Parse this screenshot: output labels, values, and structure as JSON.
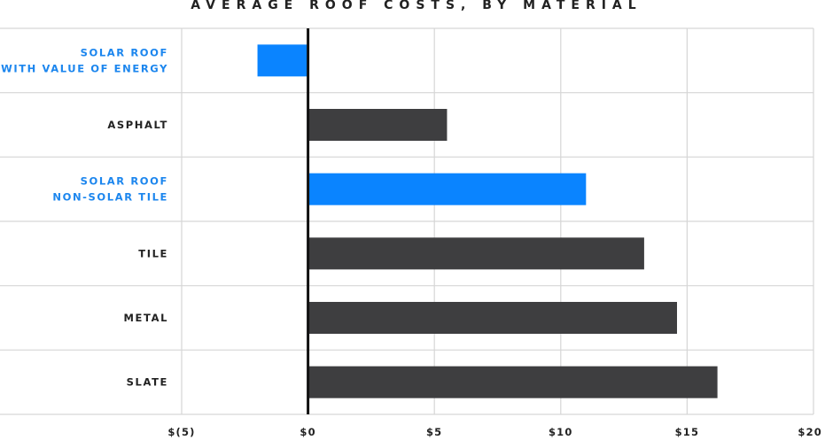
{
  "chart_data": {
    "type": "bar",
    "orientation": "horizontal",
    "title": "AVERAGE ROOF COSTS, BY MATERIAL",
    "xlabel": "",
    "ylabel": "",
    "xlim": [
      -5,
      20
    ],
    "grid": true,
    "legend": "none",
    "x_ticks": [
      {
        "value": -5,
        "label": "$(5)"
      },
      {
        "value": 0,
        "label": "$0"
      },
      {
        "value": 5,
        "label": "$5"
      },
      {
        "value": 10,
        "label": "$10"
      },
      {
        "value": 15,
        "label": "$15"
      },
      {
        "value": 20,
        "label": "$20"
      }
    ],
    "bars": [
      {
        "lines": [
          "SOLAR ROOF",
          "WITH VALUE OF ENERGY"
        ],
        "value": -2.0,
        "highlight": true
      },
      {
        "lines": [
          "ASPHALT"
        ],
        "value": 5.5,
        "highlight": false
      },
      {
        "lines": [
          "SOLAR ROOF",
          "NON-SOLAR TILE"
        ],
        "value": 11.0,
        "highlight": true
      },
      {
        "lines": [
          "TILE"
        ],
        "value": 13.3,
        "highlight": false
      },
      {
        "lines": [
          "METAL"
        ],
        "value": 14.6,
        "highlight": false
      },
      {
        "lines": [
          "SLATE"
        ],
        "value": 16.2,
        "highlight": false
      }
    ],
    "colors": {
      "highlight": "#0a84ff",
      "default": "#3e3e40",
      "highlight_text": "#1c86ee",
      "default_text": "#222222",
      "grid": "#d6d6d6",
      "zero_line": "#111111"
    }
  }
}
